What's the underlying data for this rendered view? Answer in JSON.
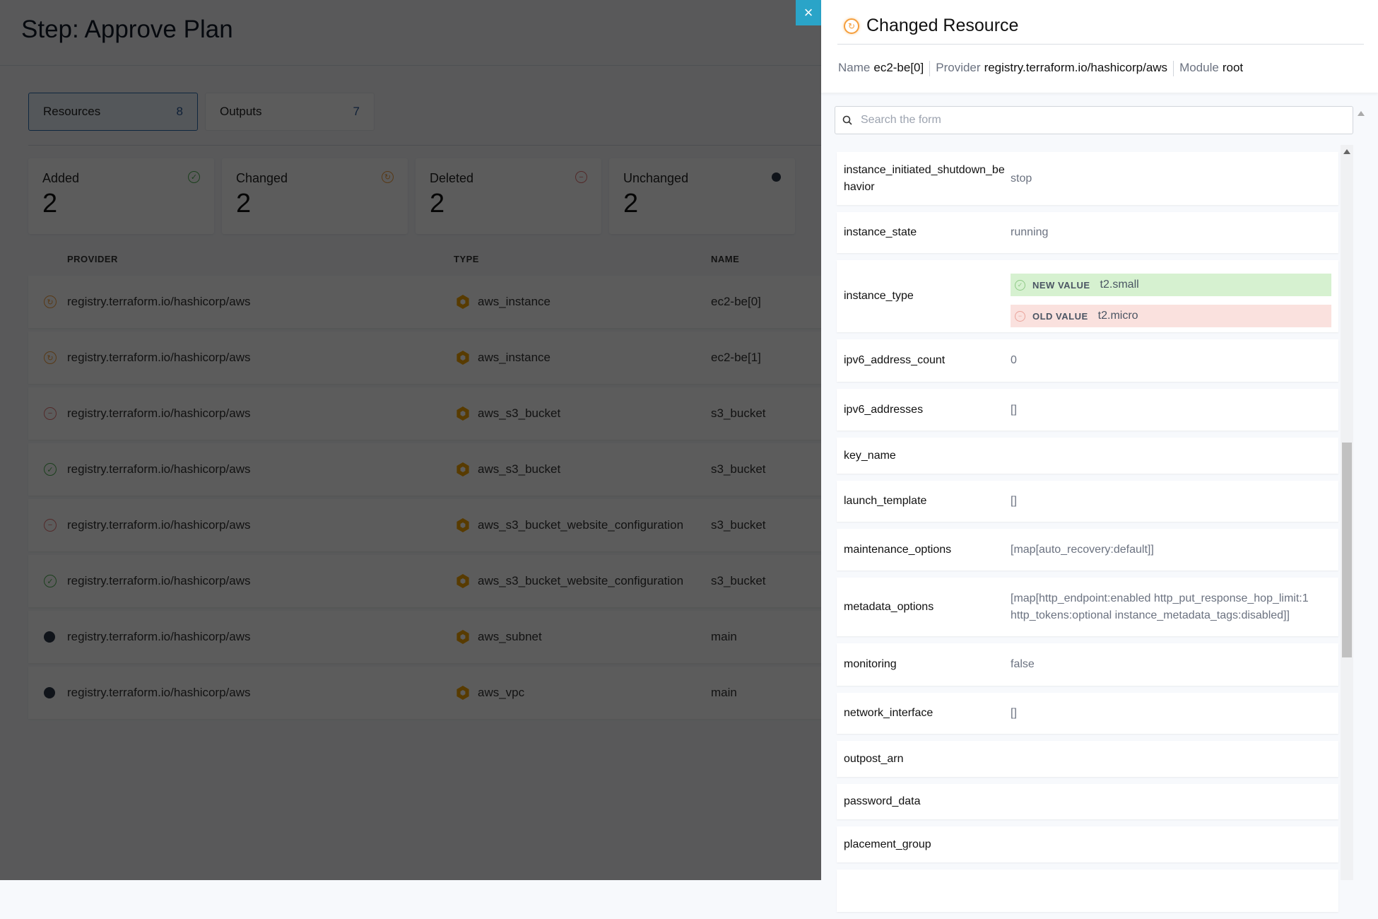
{
  "page": {
    "title": "Step: Approve Plan",
    "tabs": [
      {
        "label": "Resources",
        "count": "8",
        "active": true
      },
      {
        "label": "Outputs",
        "count": "7",
        "active": false
      }
    ],
    "stats": [
      {
        "label": "Added",
        "value": "2",
        "icon": "check-circle-icon",
        "color": "#4caf50"
      },
      {
        "label": "Changed",
        "value": "2",
        "icon": "changed-circle-icon",
        "color": "#f59e3b"
      },
      {
        "label": "Deleted",
        "value": "2",
        "icon": "minus-circle-icon",
        "color": "#e57373"
      },
      {
        "label": "Unchanged",
        "value": "2",
        "icon": "dot-icon",
        "color": "#2d3748"
      }
    ],
    "table": {
      "headers": [
        "PROVIDER",
        "TYPE",
        "NAME"
      ],
      "rows": [
        {
          "status": "changed",
          "provider": "registry.terraform.io/hashicorp/aws",
          "type": "aws_instance",
          "name": "ec2-be[0]"
        },
        {
          "status": "changed",
          "provider": "registry.terraform.io/hashicorp/aws",
          "type": "aws_instance",
          "name": "ec2-be[1]"
        },
        {
          "status": "deleted",
          "provider": "registry.terraform.io/hashicorp/aws",
          "type": "aws_s3_bucket",
          "name": "s3_bucket"
        },
        {
          "status": "added",
          "provider": "registry.terraform.io/hashicorp/aws",
          "type": "aws_s3_bucket",
          "name": "s3_bucket"
        },
        {
          "status": "deleted",
          "provider": "registry.terraform.io/hashicorp/aws",
          "type": "aws_s3_bucket_website_configuration",
          "name": "s3_bucket"
        },
        {
          "status": "added",
          "provider": "registry.terraform.io/hashicorp/aws",
          "type": "aws_s3_bucket_website_configuration",
          "name": "s3_bucket"
        },
        {
          "status": "unchanged",
          "provider": "registry.terraform.io/hashicorp/aws",
          "type": "aws_subnet",
          "name": "main"
        },
        {
          "status": "unchanged",
          "provider": "registry.terraform.io/hashicorp/aws",
          "type": "aws_vpc",
          "name": "main"
        }
      ]
    }
  },
  "panel": {
    "close_label": "×",
    "title": "Changed Resource",
    "meta": [
      {
        "key": "Name",
        "value": "ec2-be[0]"
      },
      {
        "key": "Provider",
        "value": "registry.terraform.io/hashicorp/aws"
      },
      {
        "key": "Module",
        "value": "root"
      }
    ],
    "search_placeholder": "Search the form",
    "new_label": "NEW VALUE",
    "old_label": "OLD VALUE",
    "fields": [
      {
        "key": "instance_initiated_shutdown_behavior",
        "value": "stop"
      },
      {
        "key": "instance_state",
        "value": "running"
      },
      {
        "key": "instance_type",
        "new": "t2.small",
        "old": "t2.micro"
      },
      {
        "key": "ipv6_address_count",
        "value": "0"
      },
      {
        "key": "ipv6_addresses",
        "value": "[]"
      },
      {
        "key": "key_name",
        "value": ""
      },
      {
        "key": "launch_template",
        "value": "[]"
      },
      {
        "key": "maintenance_options",
        "value": "[map[auto_recovery:default]]"
      },
      {
        "key": "metadata_options",
        "value": "[map[http_endpoint:enabled http_put_response_hop_limit:1 http_tokens:optional instance_metadata_tags:disabled]]"
      },
      {
        "key": "monitoring",
        "value": "false"
      },
      {
        "key": "network_interface",
        "value": "[]"
      },
      {
        "key": "outpost_arn",
        "value": ""
      },
      {
        "key": "password_data",
        "value": ""
      },
      {
        "key": "placement_group",
        "value": ""
      },
      {
        "key": "",
        "value": ""
      }
    ],
    "scroll_fraction": 0.42
  }
}
